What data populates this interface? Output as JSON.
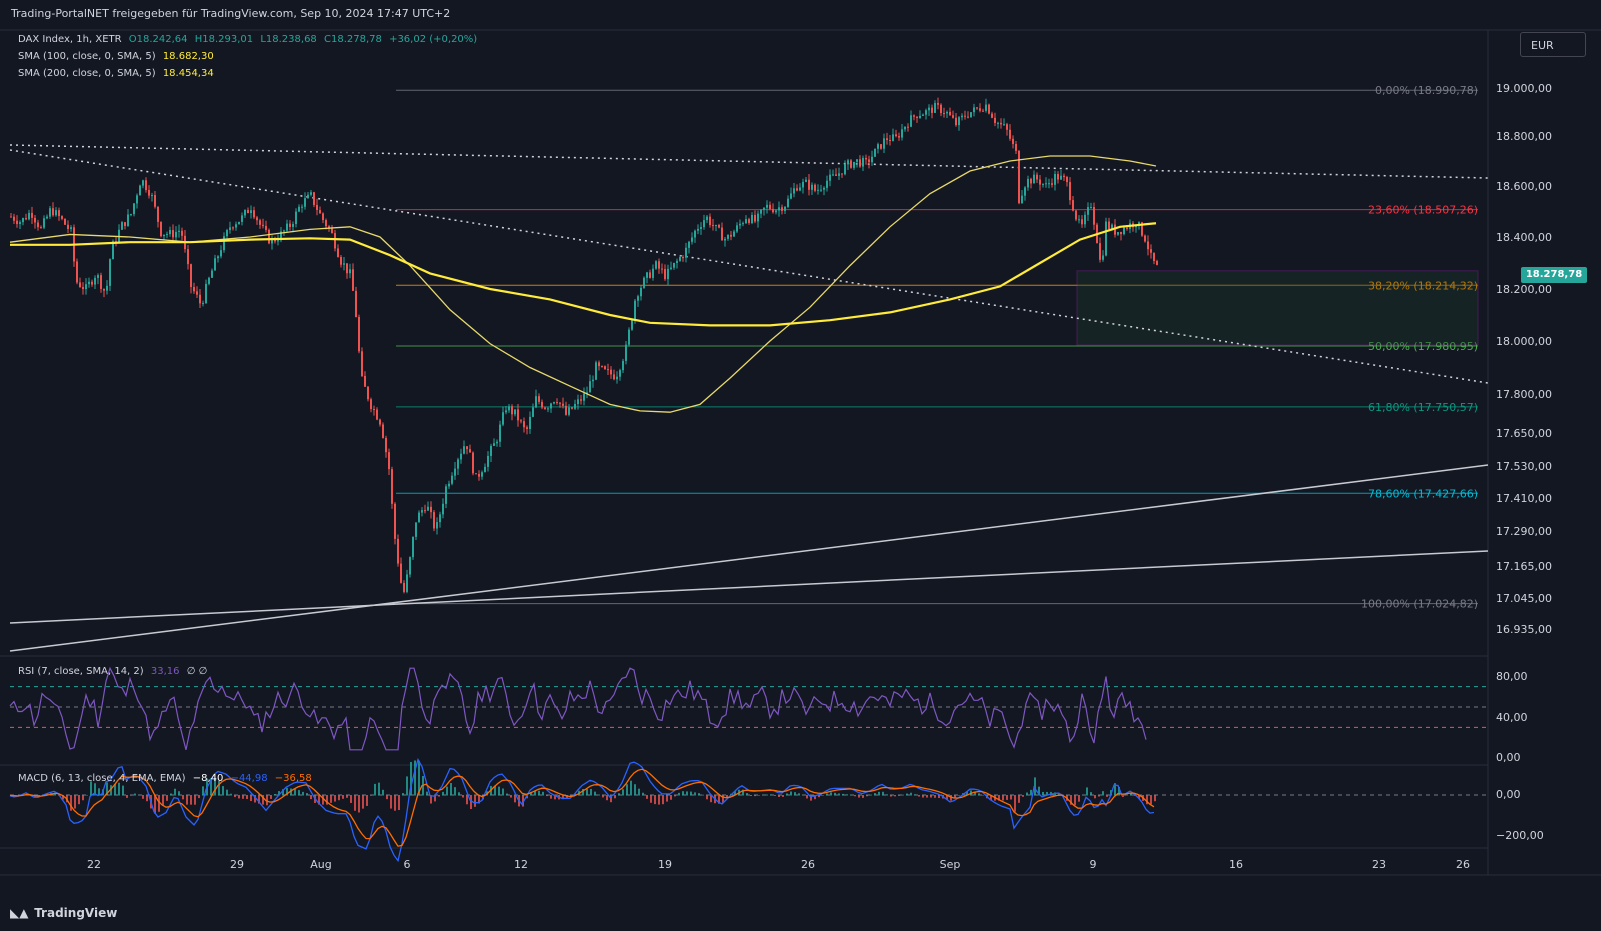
{
  "header": {
    "title": "Trading-PortalNET freigegeben für TradingView.com, Sep 10, 2024 17:47 UTC+2",
    "currency": "EUR",
    "brand": "TradingView"
  },
  "legend": {
    "symbol": "DAX Index, 1h, XETR",
    "ohlc": [
      "O18.242,64",
      "H18.293,01",
      "L18.238,68",
      "C18.278,78",
      "+36,02 (+0,20%)"
    ],
    "sma100_label": "SMA (100, close, 0, SMA, 5)",
    "sma100_value": "18.682,30",
    "sma200_label": "SMA (200, close, 0, SMA, 5)",
    "sma200_value": "18.454,34",
    "rsi_label": "RSI (7, close, SMA, 14, 2)",
    "rsi_value": "33,16",
    "rsi_extra": "∅  ∅",
    "macd_label": "MACD (6, 13, close, 4, EMA, EMA)",
    "macd_values": [
      "−8,40",
      "−44,98",
      "−36,58"
    ]
  },
  "last_price": "18.278,78",
  "colors": {
    "background": "#131722",
    "up": "#26a69a",
    "down": "#ef5350",
    "sma100": "#ffeb3b",
    "sma200": "#e8d96a",
    "rsi": "#7e57c2",
    "macd": "#2962ff",
    "signal": "#ff6d00",
    "zone_border": "#9c27b0"
  },
  "chart_data": {
    "type": "candlestick",
    "x_ticks": [
      "22",
      "29",
      "Aug",
      "6",
      "12",
      "19",
      "26",
      "Sep",
      "9",
      "16",
      "23",
      "26"
    ],
    "y_ticks": [
      "19.000,00",
      "18.800,00",
      "18.600,00",
      "18.400,00",
      "18.200,00",
      "18.000,00",
      "17.800,00",
      "17.650,00",
      "17.530,00",
      "17.410,00",
      "17.290,00",
      "17.165,00",
      "17.045,00",
      "16.935,00"
    ],
    "y_tick_values": [
      19000,
      18800,
      18600,
      18400,
      18200,
      18000,
      17800,
      17650,
      17530,
      17410,
      17290,
      17165,
      17045,
      16935
    ],
    "fib_levels": [
      {
        "label": "0,00% (18.990,78)",
        "value": 18990.78,
        "color": "#787b86"
      },
      {
        "label": "23,60% (18.507,26)",
        "value": 18507.26,
        "color": "#f23645"
      },
      {
        "label": "38,20% (18.214,32)",
        "value": 18214.32,
        "color": "#ff9800"
      },
      {
        "label": "50,00% (17.980,95)",
        "value": 17980.95,
        "color": "#4caf50"
      },
      {
        "label": "61,80% (17.750,57)",
        "value": 17750.57,
        "color": "#089981"
      },
      {
        "label": "78,60% (17.427,66)",
        "value": 17427.66,
        "color": "#00bcd4"
      },
      {
        "label": "100,00% (17.024,82)",
        "value": 17024.82,
        "color": "#787b86"
      }
    ],
    "close_path": [
      [
        0,
        18480
      ],
      [
        10,
        18460
      ],
      [
        20,
        18500
      ],
      [
        30,
        18430
      ],
      [
        40,
        18510
      ],
      [
        50,
        18470
      ],
      [
        60,
        18420
      ],
      [
        65,
        18230
      ],
      [
        75,
        18200
      ],
      [
        85,
        18260
      ],
      [
        95,
        18180
      ],
      [
        100,
        18350
      ],
      [
        110,
        18440
      ],
      [
        120,
        18490
      ],
      [
        130,
        18630
      ],
      [
        140,
        18570
      ],
      [
        150,
        18420
      ],
      [
        160,
        18410
      ],
      [
        170,
        18430
      ],
      [
        180,
        18210
      ],
      [
        190,
        18140
      ],
      [
        200,
        18260
      ],
      [
        210,
        18360
      ],
      [
        220,
        18450
      ],
      [
        230,
        18470
      ],
      [
        240,
        18520
      ],
      [
        250,
        18440
      ],
      [
        260,
        18380
      ],
      [
        270,
        18410
      ],
      [
        280,
        18450
      ],
      [
        290,
        18530
      ],
      [
        300,
        18560
      ],
      [
        310,
        18480
      ],
      [
        320,
        18420
      ],
      [
        330,
        18310
      ],
      [
        340,
        18250
      ],
      [
        345,
        18100
      ],
      [
        350,
        17860
      ],
      [
        360,
        17760
      ],
      [
        370,
        17690
      ],
      [
        378,
        17520
      ],
      [
        383,
        17290
      ],
      [
        392,
        17050
      ],
      [
        397,
        17140
      ],
      [
        405,
        17330
      ],
      [
        415,
        17390
      ],
      [
        425,
        17290
      ],
      [
        435,
        17450
      ],
      [
        445,
        17550
      ],
      [
        455,
        17620
      ],
      [
        465,
        17480
      ],
      [
        475,
        17550
      ],
      [
        485,
        17620
      ],
      [
        495,
        17750
      ],
      [
        505,
        17720
      ],
      [
        515,
        17650
      ],
      [
        525,
        17780
      ],
      [
        535,
        17750
      ],
      [
        545,
        17790
      ],
      [
        555,
        17720
      ],
      [
        565,
        17760
      ],
      [
        575,
        17800
      ],
      [
        585,
        17900
      ],
      [
        595,
        17880
      ],
      [
        605,
        17870
      ],
      [
        615,
        17970
      ],
      [
        625,
        18180
      ],
      [
        635,
        18240
      ],
      [
        645,
        18290
      ],
      [
        655,
        18250
      ],
      [
        665,
        18300
      ],
      [
        675,
        18350
      ],
      [
        685,
        18430
      ],
      [
        695,
        18480
      ],
      [
        705,
        18430
      ],
      [
        715,
        18390
      ],
      [
        725,
        18430
      ],
      [
        735,
        18480
      ],
      [
        745,
        18460
      ],
      [
        755,
        18520
      ],
      [
        765,
        18510
      ],
      [
        775,
        18530
      ],
      [
        785,
        18600
      ],
      [
        795,
        18610
      ],
      [
        805,
        18580
      ],
      [
        815,
        18620
      ],
      [
        825,
        18640
      ],
      [
        835,
        18680
      ],
      [
        845,
        18700
      ],
      [
        855,
        18690
      ],
      [
        865,
        18740
      ],
      [
        875,
        18790
      ],
      [
        885,
        18790
      ],
      [
        895,
        18850
      ],
      [
        905,
        18890
      ],
      [
        915,
        18900
      ],
      [
        925,
        18920
      ],
      [
        935,
        18900
      ],
      [
        945,
        18850
      ],
      [
        955,
        18890
      ],
      [
        965,
        18910
      ],
      [
        975,
        18930
      ],
      [
        985,
        18860
      ],
      [
        995,
        18830
      ],
      [
        1005,
        18730
      ],
      [
        1008,
        18550
      ],
      [
        1015,
        18620
      ],
      [
        1025,
        18630
      ],
      [
        1035,
        18600
      ],
      [
        1045,
        18640
      ],
      [
        1055,
        18620
      ],
      [
        1065,
        18480
      ],
      [
        1070,
        18430
      ],
      [
        1080,
        18530
      ],
      [
        1085,
        18420
      ],
      [
        1090,
        18280
      ],
      [
        1095,
        18450
      ],
      [
        1105,
        18420
      ],
      [
        1115,
        18440
      ],
      [
        1125,
        18460
      ],
      [
        1135,
        18390
      ],
      [
        1140,
        18320
      ],
      [
        1146,
        18280
      ]
    ],
    "sma100_path": [
      [
        0,
        18380
      ],
      [
        60,
        18410
      ],
      [
        120,
        18400
      ],
      [
        180,
        18380
      ],
      [
        240,
        18400
      ],
      [
        300,
        18430
      ],
      [
        340,
        18440
      ],
      [
        370,
        18400
      ],
      [
        400,
        18290
      ],
      [
        440,
        18120
      ],
      [
        480,
        17990
      ],
      [
        520,
        17900
      ],
      [
        560,
        17830
      ],
      [
        600,
        17760
      ],
      [
        630,
        17735
      ],
      [
        660,
        17730
      ],
      [
        690,
        17760
      ],
      [
        720,
        17860
      ],
      [
        760,
        18000
      ],
      [
        800,
        18130
      ],
      [
        840,
        18290
      ],
      [
        880,
        18440
      ],
      [
        920,
        18570
      ],
      [
        960,
        18660
      ],
      [
        1000,
        18700
      ],
      [
        1040,
        18720
      ],
      [
        1080,
        18720
      ],
      [
        1120,
        18700
      ],
      [
        1146,
        18680
      ]
    ],
    "sma200_path": [
      [
        0,
        18370
      ],
      [
        60,
        18370
      ],
      [
        120,
        18380
      ],
      [
        180,
        18380
      ],
      [
        240,
        18390
      ],
      [
        300,
        18395
      ],
      [
        340,
        18390
      ],
      [
        380,
        18330
      ],
      [
        420,
        18260
      ],
      [
        480,
        18200
      ],
      [
        540,
        18160
      ],
      [
        600,
        18100
      ],
      [
        640,
        18070
      ],
      [
        700,
        18060
      ],
      [
        760,
        18060
      ],
      [
        820,
        18080
      ],
      [
        880,
        18110
      ],
      [
        940,
        18160
      ],
      [
        990,
        18210
      ],
      [
        1030,
        18300
      ],
      [
        1070,
        18390
      ],
      [
        1110,
        18440
      ],
      [
        1146,
        18454
      ]
    ],
    "rsi_levels": [
      70,
      50,
      30
    ],
    "rsi_ticks": [
      "80,00",
      "40,00",
      "0,00"
    ],
    "macd_ticks": [
      "0,00",
      "−200,00"
    ]
  }
}
